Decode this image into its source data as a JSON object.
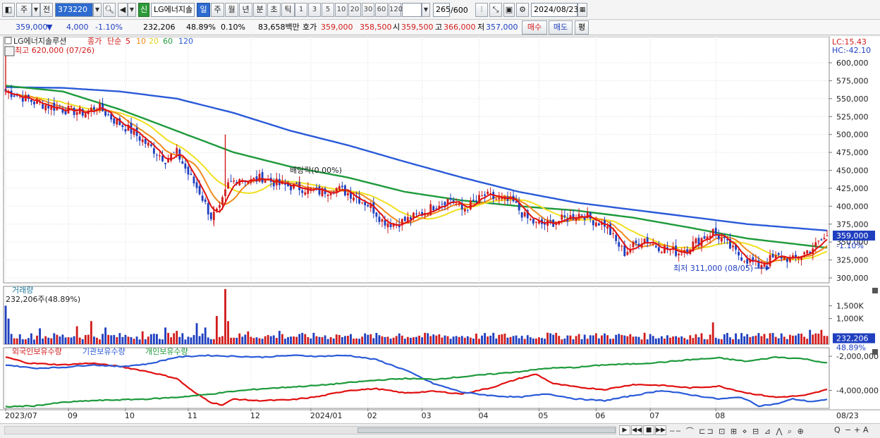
{
  "toolbar": {
    "type_label": "주",
    "prev_label": "전",
    "code": "373220",
    "badge": "신",
    "name": "LG에너지솔",
    "periods": [
      "일",
      "주",
      "월",
      "년",
      "분",
      "초",
      "틱"
    ],
    "active_period": "일",
    "intervals": [
      "1",
      "3",
      "5",
      "10",
      "20",
      "30",
      "60",
      "120"
    ],
    "count": "265",
    "count_max": "/600",
    "date": "2024/08/23"
  },
  "quote": {
    "price": "359,000",
    "change_arrow": "▼",
    "change": "4,000",
    "change_pct": "-1.10%",
    "volume": "232,206",
    "volume_ratio": "48.89%",
    "turnover": "0.10%",
    "amount": "83,658백만",
    "bid_label": "호가",
    "bid": "359,000",
    "ask": "358,500",
    "open_label": "시",
    "open": "359,500",
    "high_label": "고",
    "high": "366,000",
    "low_label": "저",
    "low": "357,000",
    "buy_label": "매수",
    "sell_label": "매도",
    "avg_label": "평"
  },
  "colors": {
    "up": "#d21c1c",
    "down": "#1f3fbf",
    "ma5": "#e01010",
    "ma10": "#f08a1c",
    "ma20": "#f0e020",
    "ma60": "#1e9a3c",
    "ma120": "#2a5ad8",
    "foreign": "#e01010",
    "institution": "#2a5ad8",
    "individual": "#1e9a3c"
  },
  "chart_data": [
    {
      "type": "candlestick",
      "title": "LG에너지솔루션",
      "legend": {
        "price_label": "종가",
        "ma_label": "단순",
        "ma_periods": [
          "5",
          "10",
          "20",
          "60",
          "120"
        ]
      },
      "high_note": "최고 620,000 (07/26)",
      "low_note": "최저 311,000 (08/05)",
      "event_note": "배당락(0.00%)",
      "lc_label": "LC:15.43",
      "hc_label": "HC:-42.10",
      "current_price": "359,000",
      "current_change": "-1.10%",
      "ylim": [
        300000,
        620000
      ],
      "yticks": [
        "600,000",
        "575,000",
        "550,000",
        "525,000",
        "500,000",
        "475,000",
        "450,000",
        "425,000",
        "400,000",
        "375,000",
        "350,000",
        "325,000",
        "300,000"
      ],
      "ytick_values": [
        600000,
        575000,
        550000,
        525000,
        500000,
        475000,
        450000,
        425000,
        400000,
        375000,
        350000,
        325000,
        300000
      ],
      "x_labels": [
        "2023/07",
        "09",
        "10",
        "11",
        "12",
        "2024/01",
        "02",
        "03",
        "04",
        "05",
        "06",
        "07",
        "08",
        "08/23"
      ],
      "anchors_close": [
        [
          0,
          560000
        ],
        [
          4,
          555000
        ],
        [
          10,
          545000
        ],
        [
          20,
          535000
        ],
        [
          28,
          530000
        ],
        [
          32,
          540000
        ],
        [
          38,
          520000
        ],
        [
          44,
          505000
        ],
        [
          50,
          485000
        ],
        [
          56,
          465000
        ],
        [
          60,
          475000
        ],
        [
          64,
          445000
        ],
        [
          68,
          420000
        ],
        [
          72,
          385000
        ],
        [
          75,
          395000
        ],
        [
          78,
          430000
        ],
        [
          82,
          440000
        ],
        [
          86,
          435000
        ],
        [
          90,
          440000
        ],
        [
          96,
          430000
        ],
        [
          104,
          425000
        ],
        [
          110,
          420000
        ],
        [
          116,
          425000
        ],
        [
          122,
          415000
        ],
        [
          128,
          400000
        ],
        [
          132,
          380000
        ],
        [
          136,
          375000
        ],
        [
          140,
          380000
        ],
        [
          146,
          390000
        ],
        [
          152,
          405000
        ],
        [
          156,
          410000
        ],
        [
          160,
          395000
        ],
        [
          164,
          405000
        ],
        [
          168,
          415000
        ],
        [
          172,
          410000
        ],
        [
          178,
          405000
        ],
        [
          182,
          385000
        ],
        [
          186,
          375000
        ],
        [
          190,
          375000
        ],
        [
          194,
          380000
        ],
        [
          198,
          385000
        ],
        [
          202,
          390000
        ],
        [
          206,
          380000
        ],
        [
          210,
          375000
        ],
        [
          214,
          350000
        ],
        [
          217,
          335000
        ],
        [
          220,
          345000
        ],
        [
          224,
          355000
        ],
        [
          228,
          345000
        ],
        [
          232,
          340000
        ],
        [
          236,
          335000
        ],
        [
          240,
          345000
        ],
        [
          244,
          355000
        ],
        [
          248,
          365000
        ],
        [
          252,
          350000
        ],
        [
          256,
          335000
        ],
        [
          260,
          325000
        ],
        [
          264,
          318000
        ],
        [
          268,
          326000
        ],
        [
          272,
          330000
        ],
        [
          276,
          325000
        ],
        [
          280,
          335000
        ],
        [
          284,
          345000
        ],
        [
          288,
          359000
        ]
      ],
      "ma60": [
        [
          0,
          568000
        ],
        [
          20,
          560000
        ],
        [
          40,
          535000
        ],
        [
          60,
          505000
        ],
        [
          80,
          475000
        ],
        [
          100,
          455000
        ],
        [
          120,
          440000
        ],
        [
          140,
          420000
        ],
        [
          160,
          408000
        ],
        [
          180,
          400000
        ],
        [
          200,
          394000
        ],
        [
          220,
          384000
        ],
        [
          240,
          370000
        ],
        [
          260,
          355000
        ],
        [
          288,
          342000
        ]
      ],
      "ma120": [
        [
          0,
          566000
        ],
        [
          20,
          565000
        ],
        [
          40,
          560000
        ],
        [
          60,
          550000
        ],
        [
          80,
          530000
        ],
        [
          100,
          505000
        ],
        [
          120,
          485000
        ],
        [
          140,
          462000
        ],
        [
          160,
          440000
        ],
        [
          180,
          420000
        ],
        [
          200,
          405000
        ],
        [
          220,
          395000
        ],
        [
          240,
          385000
        ],
        [
          260,
          375000
        ],
        [
          288,
          366000
        ]
      ]
    },
    {
      "type": "bar",
      "title": "거래량",
      "current_label": "232,206주(48.89%)",
      "current_value": "232,206",
      "current_ratio": "48.89%",
      "yticks": [
        "1,500K",
        "1,000K"
      ],
      "ytick_values": [
        1500000,
        1000000
      ],
      "ylim": [
        0,
        2200000
      ],
      "spikes": [
        [
          0,
          1500000
        ],
        [
          1,
          1000000
        ],
        [
          12,
          620000
        ],
        [
          25,
          700000
        ],
        [
          30,
          900000
        ],
        [
          35,
          650000
        ],
        [
          48,
          500000
        ],
        [
          56,
          650000
        ],
        [
          60,
          520000
        ],
        [
          67,
          820000
        ],
        [
          70,
          650000
        ],
        [
          74,
          1100000
        ],
        [
          77,
          2150000
        ],
        [
          78,
          900000
        ],
        [
          85,
          500000
        ],
        [
          96,
          520000
        ],
        [
          116,
          380000
        ],
        [
          138,
          420000
        ],
        [
          150,
          380000
        ],
        [
          170,
          330000
        ],
        [
          190,
          450000
        ],
        [
          210,
          420000
        ],
        [
          216,
          360000
        ],
        [
          248,
          850000
        ],
        [
          256,
          420000
        ],
        [
          272,
          420000
        ],
        [
          282,
          560000
        ],
        [
          286,
          560000
        ]
      ],
      "base_volume": 330000
    },
    {
      "type": "line",
      "legend": [
        "외국인보유수량",
        "기관보유수량",
        "개인보유수량"
      ],
      "yticks": [
        "-2,000,000",
        "-4,000,000"
      ],
      "ytick_values": [
        -2000000,
        -4000000
      ],
      "ylim": [
        -5050000,
        -1500000
      ],
      "series": [
        {
          "name": "외국인보유수량",
          "values": [
            [
              0,
              -2050000
            ],
            [
              8,
              -2400000
            ],
            [
              20,
              -2500000
            ],
            [
              30,
              -2400000
            ],
            [
              40,
              -2600000
            ],
            [
              50,
              -2900000
            ],
            [
              60,
              -3300000
            ],
            [
              66,
              -4100000
            ],
            [
              72,
              -4700000
            ],
            [
              76,
              -4850000
            ],
            [
              80,
              -4500000
            ],
            [
              88,
              -4600000
            ],
            [
              100,
              -4550000
            ],
            [
              110,
              -4350000
            ],
            [
              120,
              -4000000
            ],
            [
              130,
              -3900000
            ],
            [
              140,
              -4150000
            ],
            [
              150,
              -4050000
            ],
            [
              160,
              -4200000
            ],
            [
              170,
              -3850000
            ],
            [
              180,
              -3300000
            ],
            [
              186,
              -3050000
            ],
            [
              192,
              -3600000
            ],
            [
              200,
              -3800000
            ],
            [
              210,
              -3950000
            ],
            [
              220,
              -3650000
            ],
            [
              230,
              -3700000
            ],
            [
              240,
              -3850000
            ],
            [
              250,
              -3750000
            ],
            [
              260,
              -4150000
            ],
            [
              270,
              -4400000
            ],
            [
              280,
              -4300000
            ],
            [
              288,
              -3950000
            ]
          ]
        },
        {
          "name": "기관보유수량",
          "values": [
            [
              0,
              -2500000
            ],
            [
              10,
              -2700000
            ],
            [
              20,
              -2650000
            ],
            [
              30,
              -2500000
            ],
            [
              40,
              -2600000
            ],
            [
              50,
              -2450000
            ],
            [
              60,
              -2050000
            ],
            [
              70,
              -1950000
            ],
            [
              80,
              -2000000
            ],
            [
              90,
              -2050000
            ],
            [
              100,
              -1950000
            ],
            [
              110,
              -2000000
            ],
            [
              120,
              -1950000
            ],
            [
              130,
              -2200000
            ],
            [
              140,
              -2800000
            ],
            [
              150,
              -3600000
            ],
            [
              160,
              -4100000
            ],
            [
              170,
              -4300000
            ],
            [
              180,
              -4400000
            ],
            [
              190,
              -4200000
            ],
            [
              200,
              -4500000
            ],
            [
              210,
              -4600000
            ],
            [
              220,
              -4300000
            ],
            [
              230,
              -4000000
            ],
            [
              240,
              -4250000
            ],
            [
              250,
              -4500000
            ],
            [
              258,
              -4400000
            ],
            [
              264,
              -4900000
            ],
            [
              270,
              -4800000
            ],
            [
              276,
              -4500000
            ],
            [
              282,
              -4650000
            ],
            [
              288,
              -4550000
            ]
          ]
        },
        {
          "name": "개인보유수량",
          "values": [
            [
              0,
              -4950000
            ],
            [
              10,
              -4900000
            ],
            [
              20,
              -4700000
            ],
            [
              30,
              -4600000
            ],
            [
              40,
              -4550000
            ],
            [
              50,
              -4500000
            ],
            [
              60,
              -4400000
            ],
            [
              70,
              -4250000
            ],
            [
              80,
              -4050000
            ],
            [
              90,
              -3900000
            ],
            [
              100,
              -3800000
            ],
            [
              110,
              -3700000
            ],
            [
              120,
              -3550000
            ],
            [
              130,
              -3400000
            ],
            [
              140,
              -3300000
            ],
            [
              150,
              -3350000
            ],
            [
              160,
              -3200000
            ],
            [
              170,
              -3050000
            ],
            [
              180,
              -2900000
            ],
            [
              190,
              -2700000
            ],
            [
              200,
              -2650000
            ],
            [
              210,
              -2500000
            ],
            [
              220,
              -2450000
            ],
            [
              230,
              -2350000
            ],
            [
              240,
              -2200000
            ],
            [
              250,
              -2100000
            ],
            [
              260,
              -2300000
            ],
            [
              270,
              -2050000
            ],
            [
              280,
              -2150000
            ],
            [
              288,
              -2400000
            ]
          ]
        }
      ]
    }
  ]
}
